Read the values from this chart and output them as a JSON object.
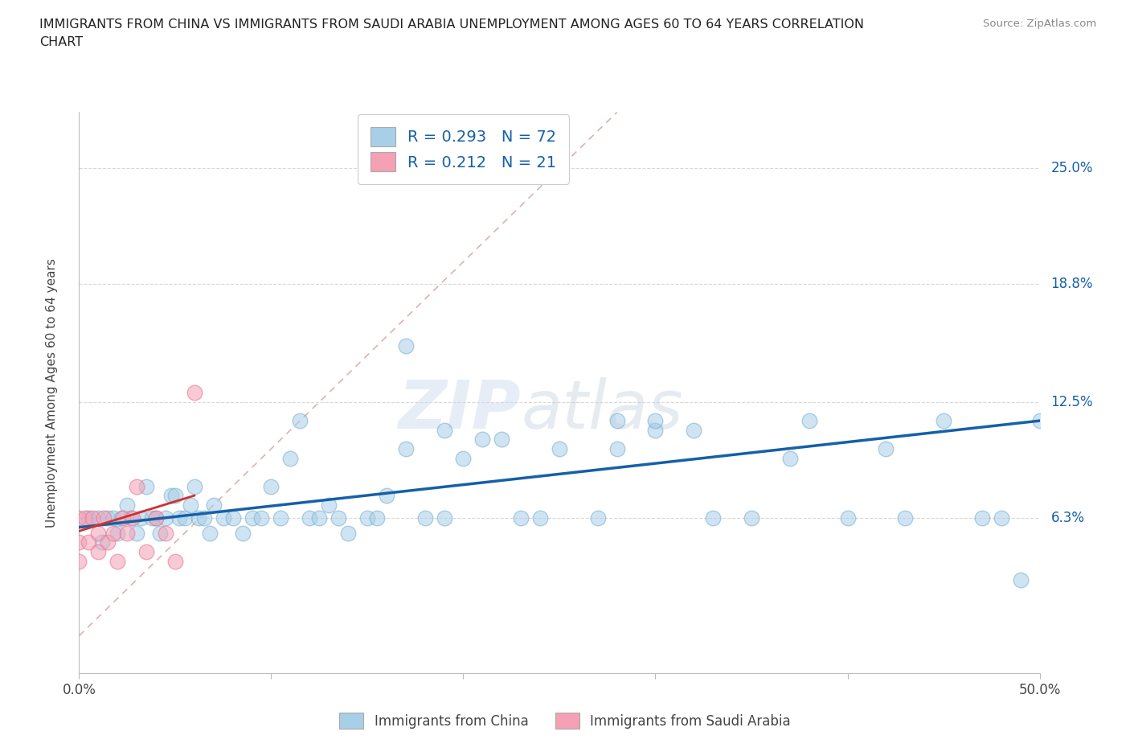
{
  "title_line1": "IMMIGRANTS FROM CHINA VS IMMIGRANTS FROM SAUDI ARABIA UNEMPLOYMENT AMONG AGES 60 TO 64 YEARS CORRELATION",
  "title_line2": "CHART",
  "source_text": "Source: ZipAtlas.com",
  "ylabel": "Unemployment Among Ages 60 to 64 years",
  "xlim": [
    0.0,
    0.5
  ],
  "ylim": [
    -0.02,
    0.28
  ],
  "ytick_labels_right": [
    "25.0%",
    "18.8%",
    "12.5%",
    "6.3%"
  ],
  "ytick_values_right": [
    0.25,
    0.188,
    0.125,
    0.063
  ],
  "watermark_zip": "ZIP",
  "watermark_atlas": "atlas",
  "legend_china_R": "R = 0.293",
  "legend_china_N": "N = 72",
  "legend_saudi_R": "R = 0.212",
  "legend_saudi_N": "N = 21",
  "china_color": "#a8cfe8",
  "saudi_color": "#f4a0b5",
  "china_edge": "#7aadcc",
  "saudi_edge": "#e87090",
  "trendline_china_color": "#1560a8",
  "trendline_saudi_color": "#d03030",
  "diagonal_color": "#e0b0b0",
  "diagonal_linestyle": "--",
  "background_color": "#ffffff",
  "grid_color": "#d8d8d8",
  "china_scatter_x": [
    0.005,
    0.01,
    0.012,
    0.015,
    0.018,
    0.02,
    0.022,
    0.025,
    0.027,
    0.03,
    0.032,
    0.035,
    0.038,
    0.04,
    0.042,
    0.045,
    0.048,
    0.05,
    0.052,
    0.055,
    0.058,
    0.06,
    0.062,
    0.065,
    0.068,
    0.07,
    0.075,
    0.08,
    0.085,
    0.09,
    0.095,
    0.1,
    0.105,
    0.11,
    0.115,
    0.12,
    0.125,
    0.13,
    0.135,
    0.14,
    0.15,
    0.155,
    0.16,
    0.17,
    0.18,
    0.19,
    0.2,
    0.21,
    0.22,
    0.23,
    0.24,
    0.25,
    0.27,
    0.28,
    0.3,
    0.32,
    0.33,
    0.35,
    0.37,
    0.38,
    0.4,
    0.42,
    0.43,
    0.45,
    0.47,
    0.48,
    0.49,
    0.17,
    0.19,
    0.28,
    0.3,
    0.5
  ],
  "china_scatter_y": [
    0.063,
    0.063,
    0.05,
    0.063,
    0.063,
    0.055,
    0.063,
    0.07,
    0.063,
    0.055,
    0.063,
    0.08,
    0.063,
    0.063,
    0.055,
    0.063,
    0.075,
    0.075,
    0.063,
    0.063,
    0.07,
    0.08,
    0.063,
    0.063,
    0.055,
    0.07,
    0.063,
    0.063,
    0.055,
    0.063,
    0.063,
    0.08,
    0.063,
    0.095,
    0.115,
    0.063,
    0.063,
    0.07,
    0.063,
    0.055,
    0.063,
    0.063,
    0.075,
    0.1,
    0.063,
    0.063,
    0.095,
    0.105,
    0.105,
    0.063,
    0.063,
    0.1,
    0.063,
    0.1,
    0.11,
    0.11,
    0.063,
    0.063,
    0.095,
    0.115,
    0.063,
    0.1,
    0.063,
    0.115,
    0.063,
    0.063,
    0.03,
    0.155,
    0.11,
    0.115,
    0.115,
    0.115
  ],
  "saudi_scatter_x": [
    0.0,
    0.0,
    0.0,
    0.003,
    0.005,
    0.007,
    0.01,
    0.01,
    0.013,
    0.015,
    0.018,
    0.02,
    0.023,
    0.025,
    0.028,
    0.03,
    0.035,
    0.04,
    0.045,
    0.05,
    0.06
  ],
  "saudi_scatter_y": [
    0.063,
    0.05,
    0.04,
    0.063,
    0.05,
    0.063,
    0.055,
    0.045,
    0.063,
    0.05,
    0.055,
    0.04,
    0.063,
    0.055,
    0.063,
    0.08,
    0.045,
    0.063,
    0.055,
    0.04,
    0.13
  ],
  "china_trend_x": [
    0.0,
    0.5
  ],
  "china_trend_y": [
    0.058,
    0.115
  ],
  "saudi_trend_x": [
    0.0,
    0.06
  ],
  "saudi_trend_y": [
    0.056,
    0.075
  ],
  "xtick_positions": [
    0.0,
    0.1,
    0.2,
    0.3,
    0.4,
    0.5
  ],
  "xtick_labels": [
    "0.0%",
    "",
    "",
    "",
    "",
    "50.0%"
  ]
}
